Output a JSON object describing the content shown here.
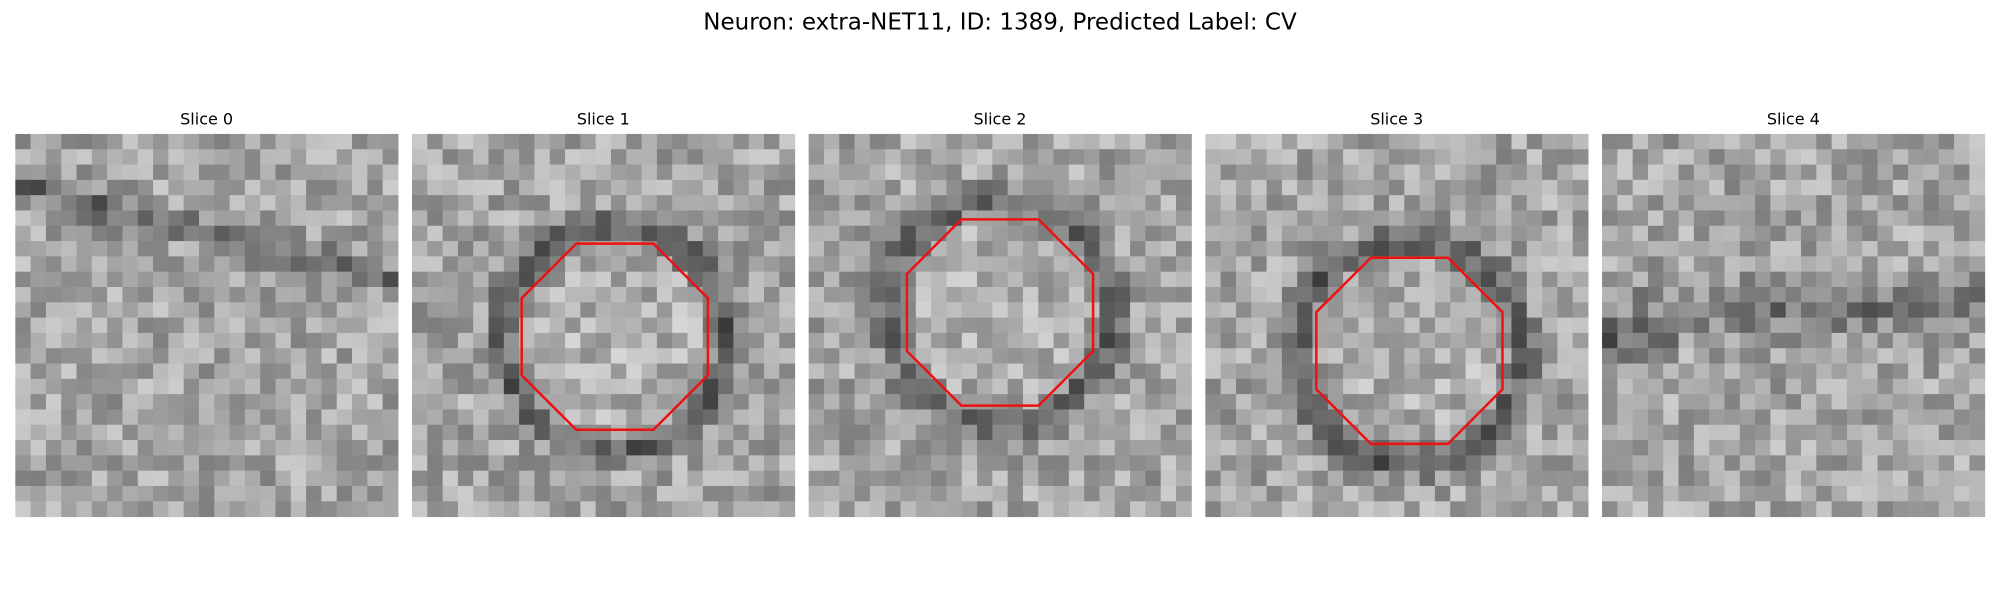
{
  "header": {
    "title": "Neuron: extra-NET11, ID: 1389, Predicted Label: CV"
  },
  "panels": [
    {
      "title": "Slice 0"
    },
    {
      "title": "Slice 1"
    },
    {
      "title": "Slice 2"
    },
    {
      "title": "Slice 3"
    },
    {
      "title": "Slice 4"
    }
  ]
}
